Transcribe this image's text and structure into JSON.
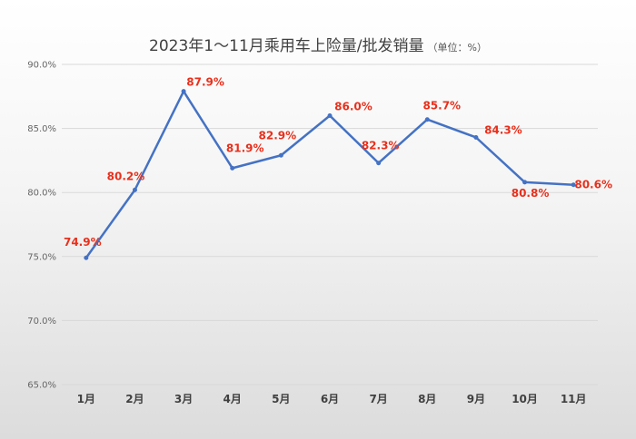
{
  "chart_data": {
    "type": "line",
    "title": "2023年1～11月乘用车上险量/批发销量",
    "title_unit": "（单位：%）",
    "categories": [
      "1月",
      "2月",
      "3月",
      "4月",
      "5月",
      "6月",
      "7月",
      "8月",
      "9月",
      "10月",
      "11月"
    ],
    "values": [
      74.9,
      80.2,
      87.9,
      81.9,
      82.9,
      86.0,
      82.3,
      85.7,
      84.3,
      80.8,
      80.6
    ],
    "data_labels": [
      "74.9%",
      "80.2%",
      "87.9%",
      "81.9%",
      "82.9%",
      "86.0%",
      "82.3%",
      "85.7%",
      "84.3%",
      "80.8%",
      "80.6%"
    ],
    "y_ticks": [
      65,
      70,
      75,
      80,
      85,
      90
    ],
    "y_tick_labels": [
      "65.0%",
      "70.0%",
      "75.0%",
      "80.0%",
      "85.0%",
      "90.0%"
    ],
    "ylim": [
      65,
      90
    ],
    "grid": true,
    "legend": "none",
    "colors": {
      "line": "#4472c4",
      "label": "#e8301c",
      "grid": "#d9d9d9"
    }
  }
}
